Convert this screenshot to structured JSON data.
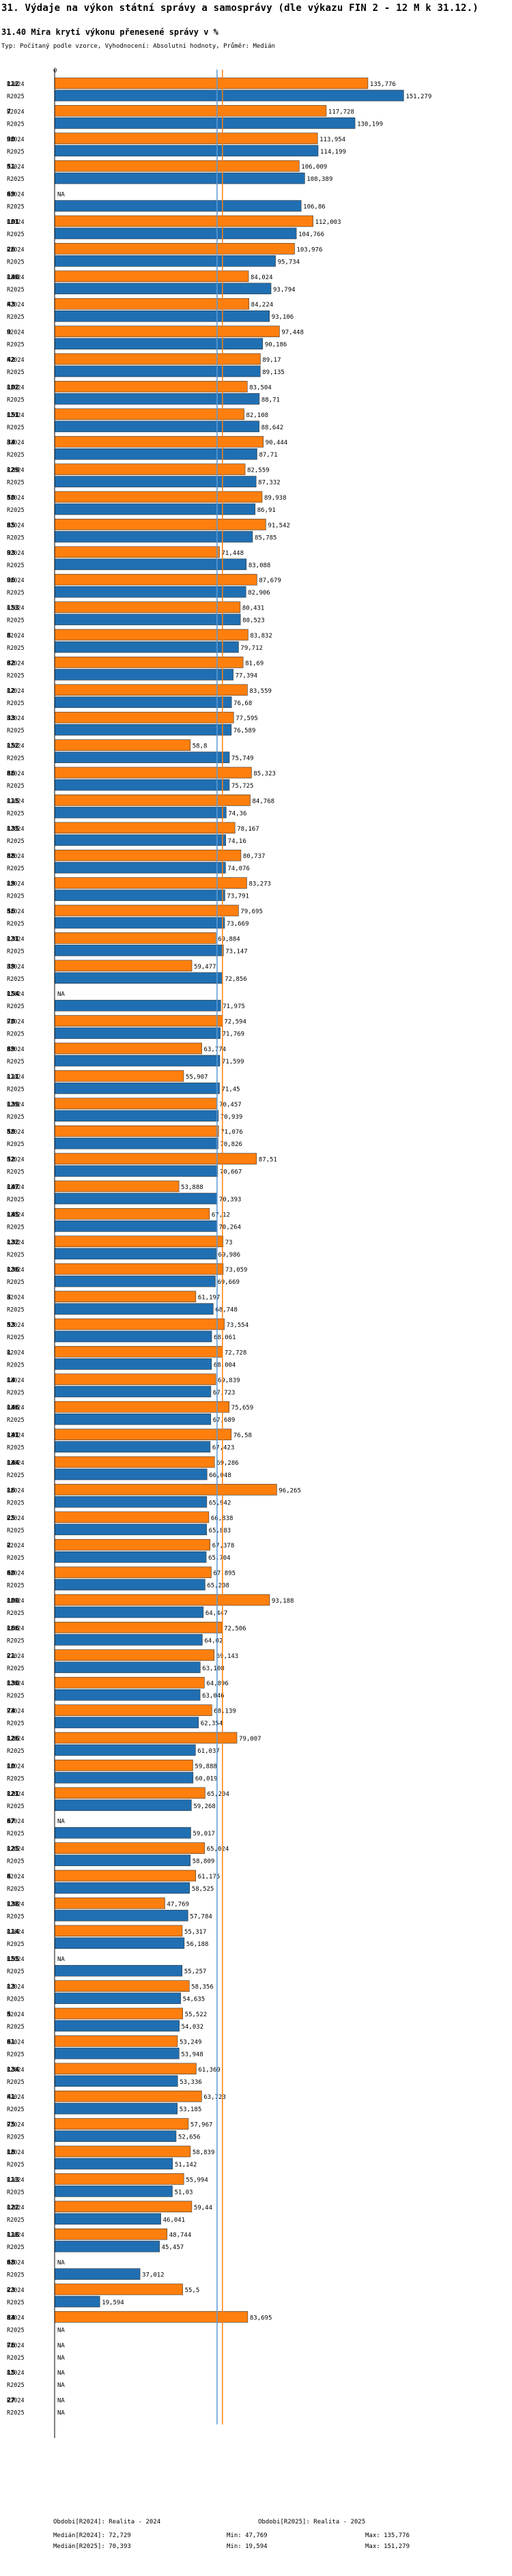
{
  "header": {
    "title": "31. Výdaje na výkon státní správy a samosprávy (dle výkazu FIN 2 - 12 M k 31.12.)",
    "subtitle": "31.40 Míra krytí výkonu přenesené správy v %",
    "description": "Typ: Počítaný podle vzorce, Vyhodnocení: Absolutní hodnoty, Průměr: Medián"
  },
  "colors": {
    "r2024": "#ff7f0e",
    "r2025": "#1f6fb2",
    "median2024": "#ff7f0e",
    "median2025": "#5b9bd5",
    "axis": "#000000"
  },
  "chart_data": {
    "type": "bar",
    "orientation": "horizontal",
    "axis_zero_label": "0",
    "xlim": [
      0,
      155
    ],
    "series_labels": [
      "R2024",
      "R2025"
    ],
    "na_label": "NA",
    "medians": {
      "R2024": 72.729,
      "R2025": 70.393
    },
    "groups": [
      {
        "id": "112",
        "r2024": 135.776,
        "r2025": 151.279
      },
      {
        "id": "7",
        "r2024": 117.728,
        "r2025": 130.199
      },
      {
        "id": "90",
        "r2024": 113.954,
        "r2025": 114.199
      },
      {
        "id": "51",
        "r2024": 106.009,
        "r2025": 108.389
      },
      {
        "id": "69",
        "r2024": null,
        "r2025": 106.86
      },
      {
        "id": "101",
        "r2024": 112.003,
        "r2025": 104.766
      },
      {
        "id": "26",
        "r2024": 103.976,
        "r2025": 95.734
      },
      {
        "id": "140",
        "r2024": 84.024,
        "r2025": 93.794
      },
      {
        "id": "43",
        "r2024": 84.224,
        "r2025": 93.106
      },
      {
        "id": "9",
        "r2024": 97.448,
        "r2025": 90.186
      },
      {
        "id": "42",
        "r2024": 89.17,
        "r2025": 89.135
      },
      {
        "id": "102",
        "r2024": 83.504,
        "r2025": 88.71
      },
      {
        "id": "151",
        "r2024": 82.108,
        "r2025": 88.642
      },
      {
        "id": "34",
        "r2024": 90.444,
        "r2025": 87.71
      },
      {
        "id": "129",
        "r2024": 82.559,
        "r2025": 87.332
      },
      {
        "id": "50",
        "r2024": 89.938,
        "r2025": 86.91
      },
      {
        "id": "85",
        "r2024": 91.542,
        "r2025": 85.785
      },
      {
        "id": "93",
        "r2024": 71.448,
        "r2025": 83.088
      },
      {
        "id": "96",
        "r2024": 87.679,
        "r2025": 82.906
      },
      {
        "id": "153",
        "r2024": 80.431,
        "r2025": 80.523
      },
      {
        "id": "8",
        "r2024": 83.832,
        "r2025": 79.712
      },
      {
        "id": "82",
        "r2024": 81.69,
        "r2025": 77.394
      },
      {
        "id": "12",
        "r2024": 83.559,
        "r2025": 76.68
      },
      {
        "id": "33",
        "r2024": 77.595,
        "r2025": 76.589
      },
      {
        "id": "152",
        "r2024": 58.8,
        "r2025": 75.749
      },
      {
        "id": "86",
        "r2024": 85.323,
        "r2025": 75.725
      },
      {
        "id": "115",
        "r2024": 84.768,
        "r2025": 74.36
      },
      {
        "id": "135",
        "r2024": 78.167,
        "r2025": 74.16
      },
      {
        "id": "88",
        "r2024": 80.737,
        "r2025": 74.076
      },
      {
        "id": "19",
        "r2024": 83.273,
        "r2025": 73.791
      },
      {
        "id": "56",
        "r2024": 79.695,
        "r2025": 73.669
      },
      {
        "id": "131",
        "r2024": 69.884,
        "r2025": 73.147
      },
      {
        "id": "39",
        "r2024": 59.477,
        "r2025": 72.856
      },
      {
        "id": "154",
        "r2024": null,
        "r2025": 71.975
      },
      {
        "id": "70",
        "r2024": 72.594,
        "r2025": 71.769
      },
      {
        "id": "89",
        "r2024": 63.774,
        "r2025": 71.599
      },
      {
        "id": "111",
        "r2024": 55.907,
        "r2025": 71.45
      },
      {
        "id": "139",
        "r2024": 70.457,
        "r2025": 70.939
      },
      {
        "id": "58",
        "r2024": 71.076,
        "r2025": 70.826
      },
      {
        "id": "52",
        "r2024": 87.51,
        "r2025": 70.667
      },
      {
        "id": "147",
        "r2024": 53.888,
        "r2025": 70.393
      },
      {
        "id": "145",
        "r2024": 67.12,
        "r2025": 70.264
      },
      {
        "id": "132",
        "r2024": 73,
        "r2025": 69.986
      },
      {
        "id": "136",
        "r2024": 73.059,
        "r2025": 69.669
      },
      {
        "id": "3",
        "r2024": 61.197,
        "r2025": 68.748
      },
      {
        "id": "53",
        "r2024": 73.554,
        "r2025": 68.061
      },
      {
        "id": "1",
        "r2024": 72.728,
        "r2025": 68.004
      },
      {
        "id": "14",
        "r2024": 69.839,
        "r2025": 67.723
      },
      {
        "id": "146",
        "r2024": 75.659,
        "r2025": 67.689
      },
      {
        "id": "141",
        "r2024": 76.58,
        "r2025": 67.423
      },
      {
        "id": "144",
        "r2024": 69.286,
        "r2025": 66.048
      },
      {
        "id": "16",
        "r2024": 96.265,
        "r2025": 65.942
      },
      {
        "id": "25",
        "r2024": 66.838,
        "r2025": 65.883
      },
      {
        "id": "2",
        "r2024": 67.378,
        "r2025": 65.704
      },
      {
        "id": "60",
        "r2024": 67.895,
        "r2025": 65.208
      },
      {
        "id": "100",
        "r2024": 93.188,
        "r2025": 64.447
      },
      {
        "id": "166",
        "r2024": 72.506,
        "r2025": 64.02
      },
      {
        "id": "21",
        "r2024": 69.143,
        "r2025": 63.108
      },
      {
        "id": "130",
        "r2024": 64.896,
        "r2025": 63.046
      },
      {
        "id": "74",
        "r2024": 68.139,
        "r2025": 62.354
      },
      {
        "id": "126",
        "r2024": 79.007,
        "r2025": 61.037
      },
      {
        "id": "10",
        "r2024": 59.888,
        "r2025": 60.019
      },
      {
        "id": "121",
        "r2024": 65.204,
        "r2025": 59.268
      },
      {
        "id": "67",
        "r2024": null,
        "r2025": 59.017
      },
      {
        "id": "125",
        "r2024": 65.024,
        "r2025": 58.809
      },
      {
        "id": "6",
        "r2024": 61.175,
        "r2025": 58.525
      },
      {
        "id": "138",
        "r2024": 47.769,
        "r2025": 57.784
      },
      {
        "id": "114",
        "r2024": 55.317,
        "r2025": 56.188
      },
      {
        "id": "155",
        "r2024": null,
        "r2025": 55.257
      },
      {
        "id": "13",
        "r2024": 58.356,
        "r2025": 54.635
      },
      {
        "id": "5",
        "r2024": 55.522,
        "r2025": 54.032
      },
      {
        "id": "61",
        "r2024": 53.249,
        "r2025": 53.948
      },
      {
        "id": "134",
        "r2024": 61.369,
        "r2025": 53.336
      },
      {
        "id": "41",
        "r2024": 63.723,
        "r2025": 53.185
      },
      {
        "id": "75",
        "r2024": 57.967,
        "r2025": 52.656
      },
      {
        "id": "18",
        "r2024": 58.839,
        "r2025": 51.142
      },
      {
        "id": "113",
        "r2024": 55.994,
        "r2025": 51.03
      },
      {
        "id": "122",
        "r2024": 59.44,
        "r2025": 46.041
      },
      {
        "id": "118",
        "r2024": 48.744,
        "r2025": 45.457
      },
      {
        "id": "68",
        "r2024": null,
        "r2025": 37.012
      },
      {
        "id": "23",
        "r2024": 55.5,
        "r2025": 19.594
      },
      {
        "id": "84",
        "r2024": 83.695,
        "r2025": null
      },
      {
        "id": "76",
        "r2024": null,
        "r2025": null
      },
      {
        "id": "15",
        "r2024": null,
        "r2025": null
      },
      {
        "id": "27",
        "r2024": null,
        "r2025": null
      }
    ]
  },
  "footer": {
    "left": [
      "Obdobi[R2024]: Realita - 2024",
      "Medián[R2024]: 72,729",
      "Medián[R2025]: 70,393"
    ],
    "mid": [
      "",
      "Min: 47,769",
      "Min: 19,594"
    ],
    "right": [
      "Obdobi[R2025]: Realita - 2025",
      "Max: 135,776",
      "Max: 151,279"
    ]
  }
}
